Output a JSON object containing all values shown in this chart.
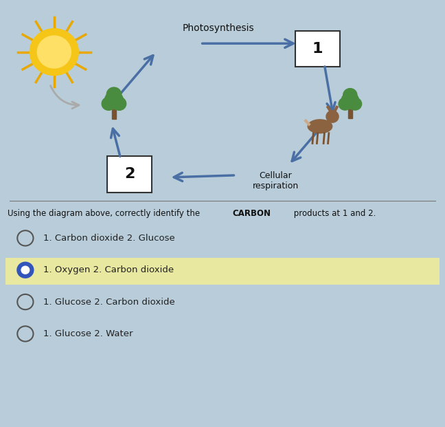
{
  "bg_color": "#b8cdd9",
  "photosynthesis_label": "Photosynthesis",
  "cellular_respiration_label": "Cellular\nrespiration",
  "box1_label": "1",
  "box2_label": "2",
  "options": [
    {
      "text": "1. Carbon dioxide 2. Glucose",
      "selected": false
    },
    {
      "text": "1. Oxygen 2. Carbon dioxide",
      "selected": true
    },
    {
      "text": "1. Glucose 2. Carbon dioxide",
      "selected": false
    },
    {
      "text": "1. Glucose 2. Water",
      "selected": false
    }
  ],
  "selected_highlight_color": "#e8e8a0",
  "arrow_color": "#4a6fa5",
  "box_edge_color": "#333333",
  "text_color": "#111111",
  "option_text_color": "#222222",
  "sun_color": "#f5c518",
  "sun_inner_color": "#ffe066",
  "sun_ray_color": "#e8a800",
  "tree_color": "#4a8c3f",
  "trunk_color": "#7a5230",
  "deer_color": "#8B6340",
  "deer_leg_color": "#7a5230"
}
